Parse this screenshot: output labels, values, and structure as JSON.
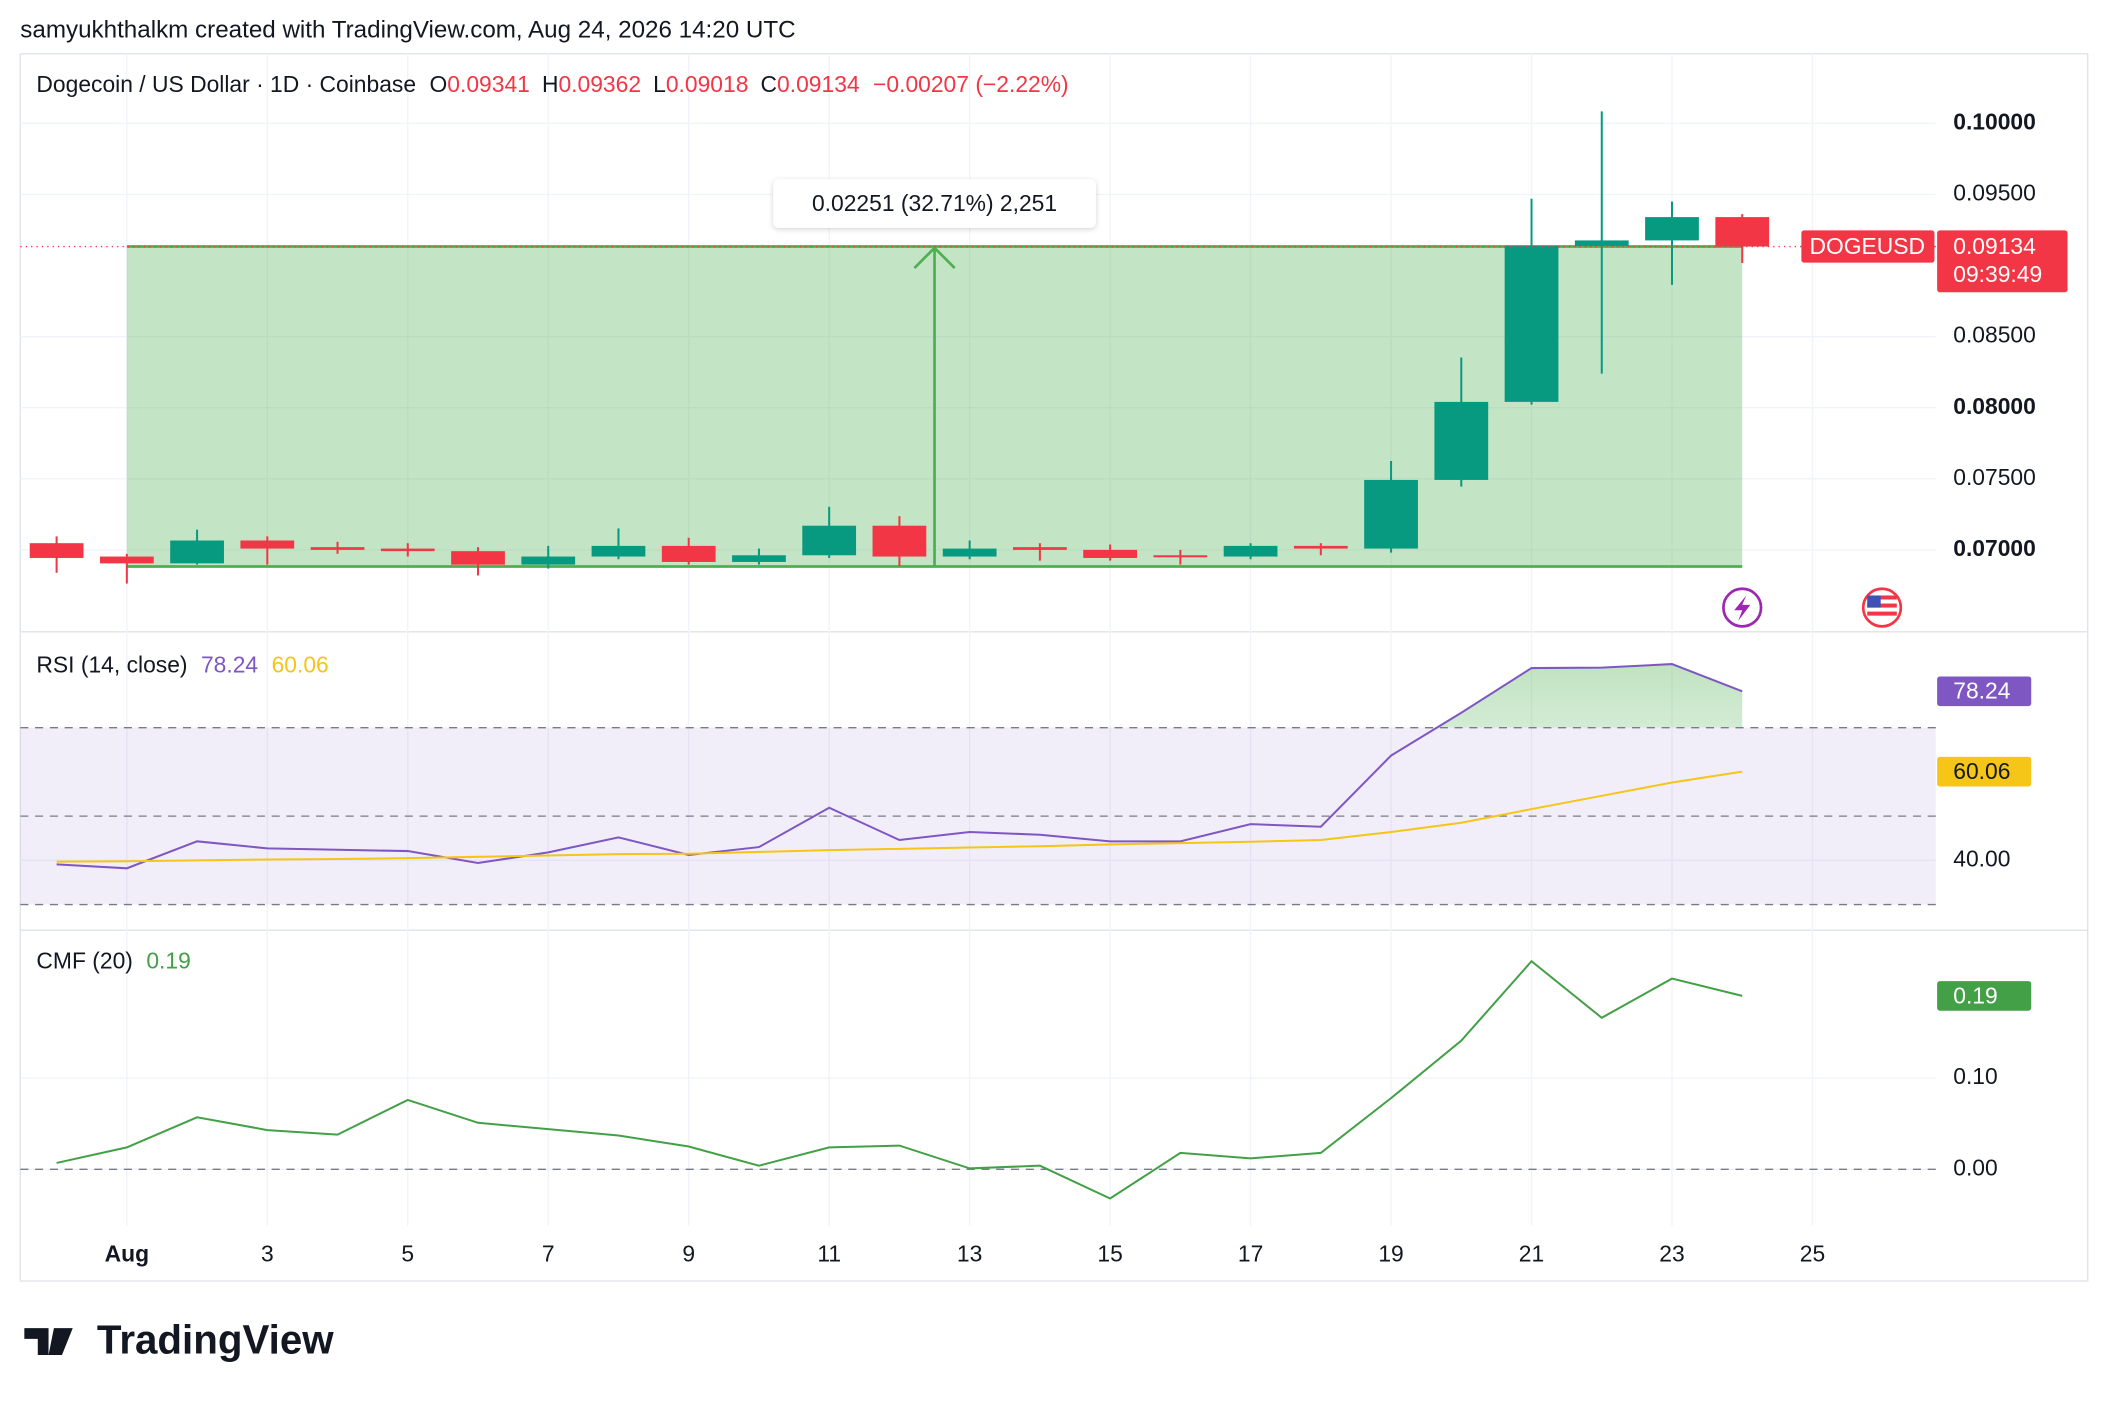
{
  "header": {
    "credit": "samyukhthalkm created with TradingView.com, Aug 24, 2026 14:20 UTC",
    "logo": "TradingView"
  },
  "chart_data": [
    {
      "type": "candlestick",
      "title": "Dogecoin / US Dollar · 1D · Coinbase",
      "ohlc_legend": [
        {
          "label": "O",
          "value": 0.09341
        },
        {
          "label": "H",
          "value": 0.09362
        },
        {
          "label": "L",
          "value": 0.09018
        },
        {
          "label": "C",
          "value": 0.09134
        }
      ],
      "change_label": "−0.00207 (−2.22%)",
      "categories": [
        null,
        "Aug",
        null,
        "3",
        null,
        "5",
        null,
        "7",
        null,
        "9",
        null,
        "11",
        null,
        "13",
        null,
        "15",
        null,
        "17",
        null,
        "19",
        null,
        "21",
        null,
        "23",
        null,
        "25"
      ],
      "open": [
        0.07047,
        0.06953,
        0.06905,
        0.07066,
        0.07019,
        0.07009,
        0.06991,
        0.06896,
        0.06953,
        0.07028,
        0.06915,
        0.06962,
        0.0717,
        0.06953,
        0.07019,
        0.07,
        0.06962,
        0.06953,
        0.07028,
        0.07009,
        0.07492,
        0.08041,
        0.09139,
        0.09177,
        0.09341,
        null
      ],
      "high": [
        0.07095,
        0.06972,
        0.07142,
        0.07095,
        0.07057,
        0.07047,
        0.07019,
        0.07028,
        0.07151,
        0.07085,
        0.07009,
        0.07303,
        0.07237,
        0.07066,
        0.07047,
        0.07038,
        0.07,
        0.07047,
        0.07047,
        0.07625,
        0.08353,
        0.0947,
        0.10085,
        0.09451,
        0.09362,
        null
      ],
      "low": [
        0.06839,
        0.06763,
        0.06896,
        0.06896,
        0.06972,
        0.06953,
        0.0682,
        0.06868,
        0.06934,
        0.06896,
        0.06896,
        0.06943,
        0.06886,
        0.06934,
        0.06924,
        0.06924,
        0.06896,
        0.06934,
        0.06962,
        0.06981,
        0.07445,
        0.08022,
        0.0824,
        0.08864,
        0.09018,
        null
      ],
      "close": [
        0.06943,
        0.06905,
        0.07066,
        0.07009,
        0.07,
        0.06991,
        0.06896,
        0.06953,
        0.07028,
        0.06915,
        0.06962,
        0.0717,
        0.06953,
        0.07009,
        0.07,
        0.06943,
        0.06953,
        0.07028,
        0.07009,
        0.07492,
        0.08041,
        0.09139,
        0.09177,
        0.09341,
        0.09134,
        null
      ],
      "colors": {
        "up": "#089981",
        "down": "#f23645",
        "measure": "#4caf50"
      },
      "ylim": [
        0.0649,
        0.1049
      ],
      "yticks": [
        {
          "value": 0.07,
          "label": "0.07000"
        },
        {
          "value": 0.075,
          "label": "0.07500"
        },
        {
          "value": 0.08,
          "label": "0.08000"
        },
        {
          "value": 0.085,
          "label": "0.08500"
        },
        {
          "value": 0.095,
          "label": "0.09500"
        },
        {
          "value": 0.1,
          "label": "0.10000"
        }
      ],
      "grid": true,
      "last_price": {
        "symbol": "DOGEUSD",
        "value": 0.09134,
        "countdown": "09:39:49"
      },
      "measure": {
        "label": "0.02251 (32.71%) 2,251",
        "from": 0.06883,
        "to": 0.09134
      }
    },
    {
      "type": "line",
      "title": "RSI (14, close)",
      "series": [
        {
          "color": "#7e57c2",
          "values": [
            39.1,
            38.2,
            44.3,
            42.7,
            42.4,
            42.1,
            39.4,
            41.8,
            45.2,
            41.2,
            43.0,
            51.9,
            44.6,
            46.4,
            45.8,
            44.3,
            44.3,
            48.2,
            47.6,
            63.7,
            73.4,
            83.5,
            83.6,
            84.4,
            78.24
          ]
        },
        {
          "color": "#f5c518",
          "values": [
            39.7,
            39.8,
            40.0,
            40.2,
            40.3,
            40.5,
            40.8,
            41.1,
            41.4,
            41.5,
            41.9,
            42.3,
            42.6,
            42.9,
            43.2,
            43.6,
            43.9,
            44.2,
            44.6,
            46.4,
            48.5,
            51.6,
            54.6,
            57.6,
            60.06
          ]
        }
      ],
      "ylim": [
        24.2,
        91.1
      ],
      "yticks": [
        {
          "value": 40,
          "label": "40.00"
        }
      ],
      "levels": [
        30,
        50,
        70
      ]
    },
    {
      "type": "line",
      "title": "CMF (20)",
      "series": [
        {
          "color": "#43a047",
          "values": [
            0.007,
            0.024,
            0.057,
            0.043,
            0.038,
            0.076,
            0.051,
            0.044,
            0.037,
            0.025,
            0.004,
            0.024,
            0.026,
            0.001,
            0.004,
            -0.032,
            0.018,
            0.012,
            0.018,
            0.078,
            0.141,
            0.228,
            0.166,
            0.209,
            0.19
          ]
        }
      ],
      "ylim": [
        -0.062,
        0.262
      ],
      "yticks": [
        {
          "value": 0,
          "label": "0.00"
        },
        {
          "value": 0.1,
          "label": "0.10"
        }
      ],
      "levels": [
        0
      ]
    }
  ]
}
